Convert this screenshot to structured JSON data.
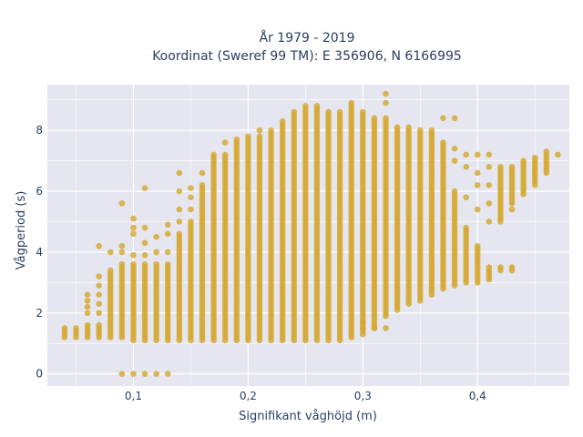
{
  "chart_data": {
    "type": "scatter",
    "title_lines": [
      "År 1979 - 2019",
      "Koordinat (Sweref 99 TM): E 356906, N 6166995"
    ],
    "xlabel": "Signifikant våghöjd (m)",
    "ylabel": "Vågperiod (s)",
    "xlim": [
      0.025,
      0.48
    ],
    "ylim": [
      -0.4,
      9.5
    ],
    "x_ticks": [
      {
        "value": 0.1,
        "label": "0,1"
      },
      {
        "value": 0.2,
        "label": "0,2"
      },
      {
        "value": 0.3,
        "label": "0,3"
      },
      {
        "value": 0.4,
        "label": "0,4"
      }
    ],
    "y_ticks": [
      {
        "value": 0,
        "label": "0"
      },
      {
        "value": 2,
        "label": "2"
      },
      {
        "value": 4,
        "label": "4"
      },
      {
        "value": 6,
        "label": "6"
      },
      {
        "value": 8,
        "label": "8"
      }
    ],
    "grid": true,
    "marker_color": "#d4a62a",
    "plot_background": "#e5e6ef",
    "columns": [
      {
        "x": 0.04,
        "ymin": 1.2,
        "ymax": 1.5,
        "extra": []
      },
      {
        "x": 0.05,
        "ymin": 1.2,
        "ymax": 1.5,
        "extra": []
      },
      {
        "x": 0.06,
        "ymin": 1.2,
        "ymax": 1.6,
        "extra": [
          2.0,
          2.2,
          2.4,
          2.6
        ]
      },
      {
        "x": 0.07,
        "ymin": 1.2,
        "ymax": 1.6,
        "extra": [
          2.0,
          2.3,
          2.6,
          2.9,
          3.2,
          4.2
        ]
      },
      {
        "x": 0.08,
        "ymin": 1.2,
        "ymax": 3.4,
        "extra": [
          4.0
        ]
      },
      {
        "x": 0.09,
        "ymin": 1.2,
        "ymax": 3.6,
        "extra": [
          0.0,
          4.0,
          4.2,
          5.6
        ]
      },
      {
        "x": 0.1,
        "ymin": 1.1,
        "ymax": 3.6,
        "extra": [
          0.0,
          3.9,
          4.6,
          4.8,
          5.1
        ]
      },
      {
        "x": 0.11,
        "ymin": 1.1,
        "ymax": 3.6,
        "extra": [
          0.0,
          3.9,
          4.3,
          4.8,
          6.1
        ]
      },
      {
        "x": 0.12,
        "ymin": 1.1,
        "ymax": 3.6,
        "extra": [
          0.0,
          4.0,
          4.5
        ]
      },
      {
        "x": 0.13,
        "ymin": 1.1,
        "ymax": 3.6,
        "extra": [
          0.0,
          4.0,
          4.6,
          4.9
        ]
      },
      {
        "x": 0.14,
        "ymin": 1.1,
        "ymax": 4.6,
        "extra": [
          5.0,
          5.4,
          6.0,
          6.6
        ]
      },
      {
        "x": 0.15,
        "ymin": 1.1,
        "ymax": 5.0,
        "extra": [
          5.4,
          5.8,
          6.1
        ]
      },
      {
        "x": 0.16,
        "ymin": 1.1,
        "ymax": 6.2,
        "extra": [
          6.6
        ]
      },
      {
        "x": 0.17,
        "ymin": 1.1,
        "ymax": 7.2,
        "extra": []
      },
      {
        "x": 0.18,
        "ymin": 1.1,
        "ymax": 7.2,
        "extra": [
          7.6
        ]
      },
      {
        "x": 0.19,
        "ymin": 1.1,
        "ymax": 7.7,
        "extra": []
      },
      {
        "x": 0.2,
        "ymin": 1.1,
        "ymax": 7.8,
        "extra": []
      },
      {
        "x": 0.21,
        "ymin": 1.1,
        "ymax": 7.8,
        "extra": [
          8.0
        ]
      },
      {
        "x": 0.22,
        "ymin": 1.1,
        "ymax": 8.0,
        "extra": []
      },
      {
        "x": 0.23,
        "ymin": 1.1,
        "ymax": 8.3,
        "extra": []
      },
      {
        "x": 0.24,
        "ymin": 1.1,
        "ymax": 8.6,
        "extra": []
      },
      {
        "x": 0.25,
        "ymin": 1.1,
        "ymax": 8.8,
        "extra": []
      },
      {
        "x": 0.26,
        "ymin": 1.1,
        "ymax": 8.8,
        "extra": []
      },
      {
        "x": 0.27,
        "ymin": 1.1,
        "ymax": 8.6,
        "extra": []
      },
      {
        "x": 0.28,
        "ymin": 1.1,
        "ymax": 8.6,
        "extra": []
      },
      {
        "x": 0.29,
        "ymin": 1.2,
        "ymax": 8.9,
        "extra": []
      },
      {
        "x": 0.3,
        "ymin": 1.3,
        "ymax": 8.6,
        "extra": [
          1.5,
          1.7
        ]
      },
      {
        "x": 0.31,
        "ymin": 1.5,
        "ymax": 8.4,
        "extra": [
          1.5
        ]
      },
      {
        "x": 0.32,
        "ymin": 1.9,
        "ymax": 8.4,
        "extra": [
          1.5,
          8.9,
          9.2
        ]
      },
      {
        "x": 0.33,
        "ymin": 2.1,
        "ymax": 8.1,
        "extra": []
      },
      {
        "x": 0.34,
        "ymin": 2.3,
        "ymax": 8.1,
        "extra": []
      },
      {
        "x": 0.35,
        "ymin": 2.4,
        "ymax": 8.0,
        "extra": []
      },
      {
        "x": 0.36,
        "ymin": 2.6,
        "ymax": 8.0,
        "extra": []
      },
      {
        "x": 0.37,
        "ymin": 2.8,
        "ymax": 7.6,
        "extra": [
          8.4
        ]
      },
      {
        "x": 0.38,
        "ymin": 2.9,
        "ymax": 6.0,
        "extra": [
          7.0,
          7.4,
          8.4
        ]
      },
      {
        "x": 0.39,
        "ymin": 3.0,
        "ymax": 4.8,
        "extra": [
          5.8,
          6.8,
          7.2
        ]
      },
      {
        "x": 0.4,
        "ymin": 3.0,
        "ymax": 4.2,
        "extra": [
          5.4,
          6.2,
          6.6,
          7.2
        ]
      },
      {
        "x": 0.41,
        "ymin": 3.1,
        "ymax": 3.5,
        "extra": [
          5.0,
          5.6,
          6.2,
          6.8,
          7.2
        ]
      },
      {
        "x": 0.42,
        "ymin": 5.0,
        "ymax": 6.8,
        "extra": [
          3.4,
          3.5
        ]
      },
      {
        "x": 0.43,
        "ymin": 5.6,
        "ymax": 6.8,
        "extra": [
          3.4,
          3.5,
          5.4
        ]
      },
      {
        "x": 0.44,
        "ymin": 5.9,
        "ymax": 7.0,
        "extra": []
      },
      {
        "x": 0.45,
        "ymin": 6.2,
        "ymax": 7.1,
        "extra": []
      },
      {
        "x": 0.46,
        "ymin": 6.6,
        "ymax": 7.3,
        "extra": []
      },
      {
        "x": 0.47,
        "ymin": 7.2,
        "ymax": 7.2,
        "extra": []
      }
    ]
  }
}
